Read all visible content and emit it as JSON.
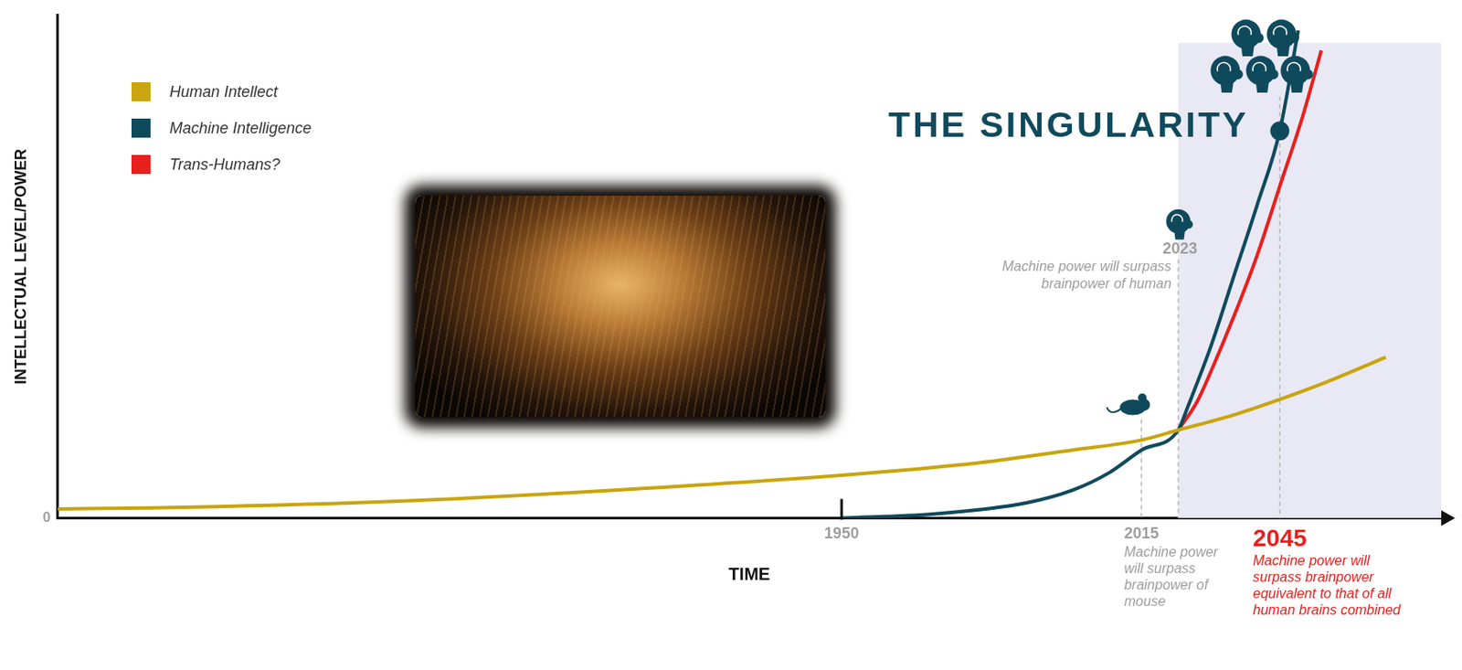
{
  "chart_data": {
    "type": "line",
    "x_label": "TIME",
    "y_label": "INTELLECTUAL LEVEL/POWER",
    "xlim": [
      1780,
      2080
    ],
    "xticks": [
      1950,
      2015,
      2045
    ],
    "ylim": [
      0,
      100
    ],
    "yticks": [
      0
    ],
    "grid": false,
    "legend": "upper left",
    "series": [
      {
        "name": "Human Intellect",
        "color": "#c9a50e",
        "x": [
          1780,
          1800,
          1850,
          1900,
          1950,
          1980,
          2000,
          2015,
          2023,
          2035,
          2045,
          2055,
          2068
        ],
        "values": [
          1.8,
          2,
          3.2,
          5.5,
          8.5,
          11,
          13.5,
          15.5,
          17.5,
          20.5,
          23.6,
          27,
          32
        ]
      },
      {
        "name": "Machine Intelligence",
        "color": "#0f4a5c",
        "x": [
          1950,
          1970,
          1990,
          2000,
          2008,
          2015,
          2023,
          2025,
          2030,
          2035,
          2040,
          2045,
          2049
        ],
        "values": [
          0,
          0.8,
          3,
          5.5,
          9,
          13.5,
          17.5,
          22,
          34,
          48,
          62,
          77,
          97
        ]
      },
      {
        "name": "Trans-Humans?",
        "color": "#e8201e",
        "x": [
          2023,
          2027,
          2030,
          2035,
          2040,
          2045,
          2050,
          2054
        ],
        "values": [
          17.5,
          23,
          29,
          40,
          52,
          66,
          80,
          93
        ]
      }
    ],
    "annotations": [
      {
        "x": 2015,
        "text": "Machine power will surpass brainpower of mouse",
        "color": "#9e9e9e"
      },
      {
        "x": 2023,
        "text": "Machine power will surpass brainpower of human",
        "color": "#9e9e9e"
      },
      {
        "x": 2045,
        "text": "Machine power will surpass brainpower equivalent to that of all human brains combined",
        "color": "#e8201e"
      },
      {
        "x": 2045,
        "y": 77,
        "text": "THE SINGULARITY",
        "marker": "circle",
        "color": "#0f4a5c"
      }
    ]
  }
}
